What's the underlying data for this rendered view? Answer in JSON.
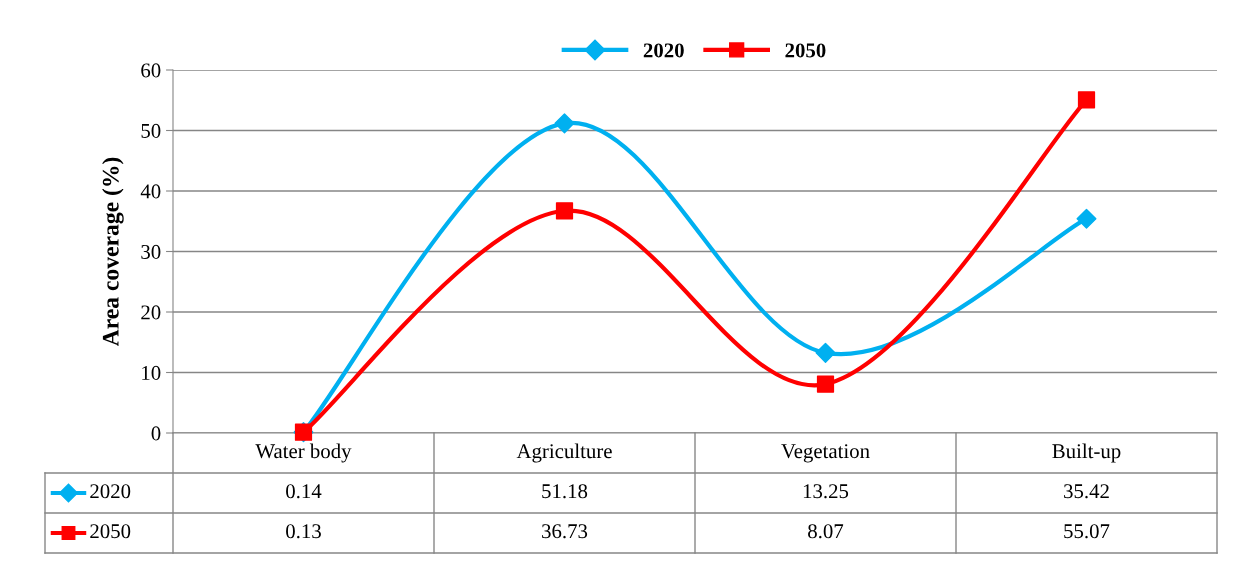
{
  "chart_data": {
    "type": "line",
    "ylabel": "Area coverage (%)",
    "categories": [
      "Water body",
      "Agriculture",
      "Vegetation",
      "Built-up"
    ],
    "series": [
      {
        "name": "2020",
        "color": "#00b0f0",
        "marker": "diamond",
        "values": [
          0.14,
          51.18,
          13.25,
          35.42
        ]
      },
      {
        "name": "2050",
        "color": "#ff0000",
        "marker": "square",
        "values": [
          0.13,
          36.73,
          8.07,
          55.07
        ]
      }
    ],
    "ylim": [
      0,
      60
    ],
    "yticks": [
      0,
      10,
      20,
      30,
      40,
      50,
      60
    ],
    "grid": "y",
    "legend": "top",
    "data_labels": true,
    "line_style": "solid"
  }
}
